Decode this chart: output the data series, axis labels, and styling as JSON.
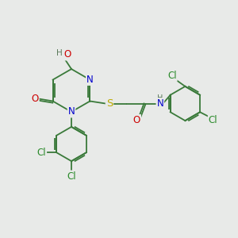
{
  "bg_color": "#e8eae8",
  "bond_color": "#3a7a3a",
  "atom_colors": {
    "N": "#0000cc",
    "O": "#cc0000",
    "S": "#bbaa00",
    "Cl": "#2a8a2a",
    "H": "#5a7a5a",
    "C": "#3a7a3a"
  },
  "font_size": 8.5,
  "figsize": [
    3.0,
    3.0
  ],
  "dpi": 100
}
